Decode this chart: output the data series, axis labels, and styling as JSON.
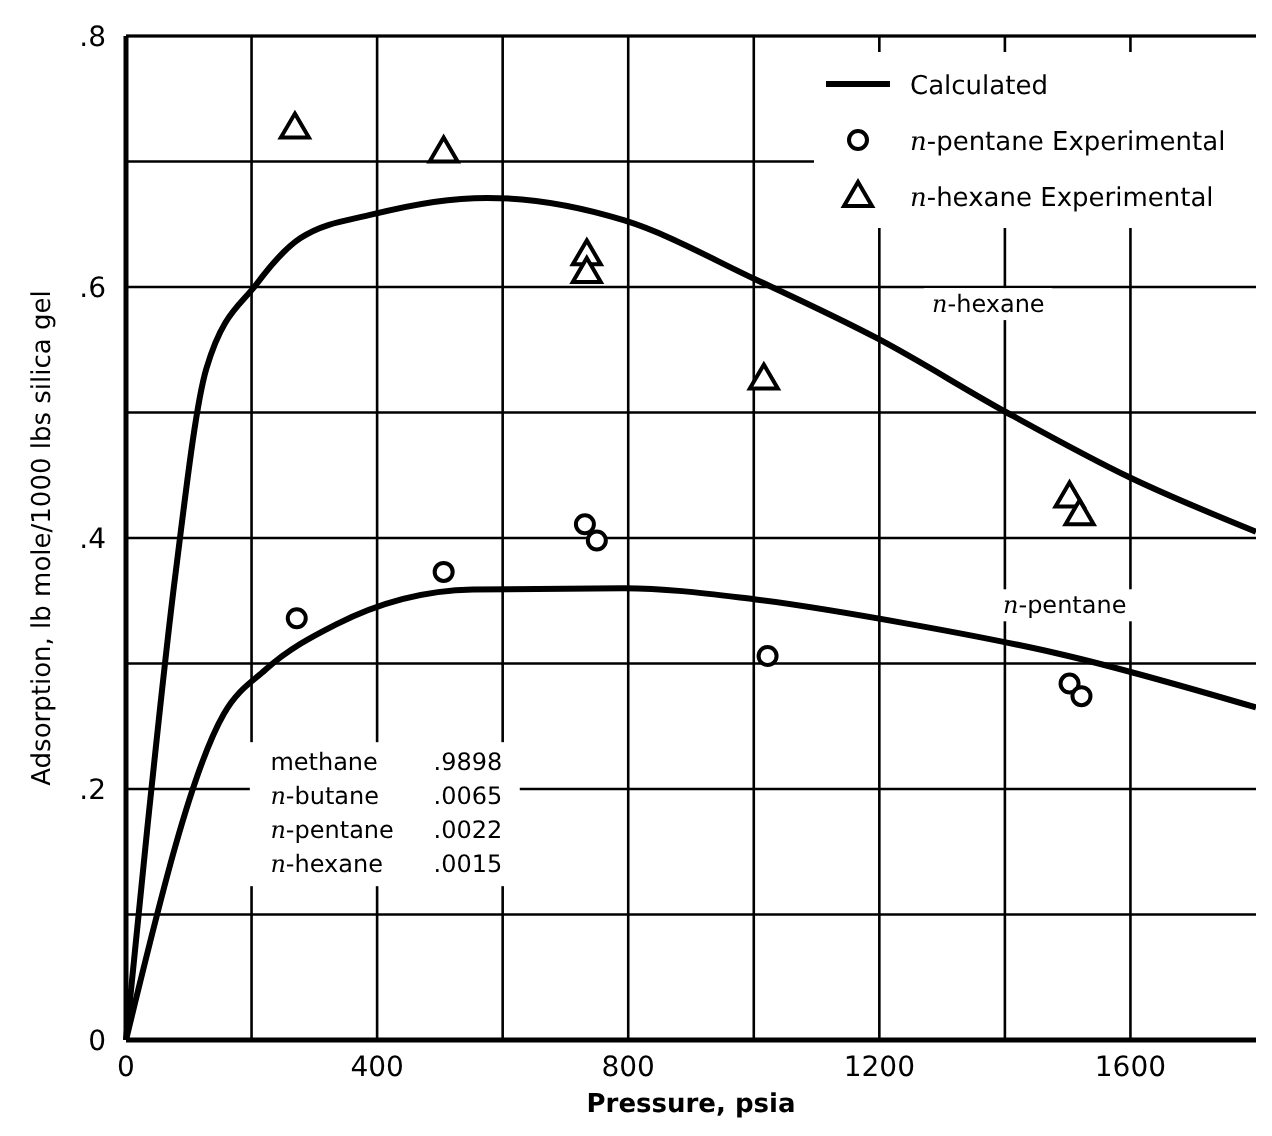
{
  "chart_data": {
    "type": "line",
    "xlabel": "Pressure, psia",
    "ylabel": "Adsorption, lb mole/1000 lbs silica gel",
    "xlim": [
      0,
      1800
    ],
    "ylim": [
      0,
      0.8
    ],
    "xticks": [
      0,
      {
        "value": 200,
        "label": null
      },
      400,
      {
        "value": 600,
        "label": null
      },
      800,
      {
        "value": 1000,
        "label": null
      },
      1200,
      {
        "value": 1400,
        "label": null
      },
      1600
    ],
    "yticks": [
      0,
      {
        "value": 0.1,
        "label": null
      },
      {
        "value": 0.2,
        "label": ".2"
      },
      {
        "value": 0.3,
        "label": null
      },
      {
        "value": 0.4,
        "label": ".4"
      },
      {
        "value": 0.5,
        "label": null
      },
      {
        "value": 0.6,
        "label": ".6"
      },
      {
        "value": 0.7,
        "label": null
      },
      {
        "value": 0.8,
        "label": ".8"
      }
    ],
    "grid": true,
    "legend": "top right",
    "series": [
      {
        "name": "Calculated",
        "color": "#000000",
        "line_style": "solid",
        "x": [
          0,
          34,
          78,
          128,
          209,
          278,
          394,
          575,
          794,
          1003,
          1197,
          1403,
          1600,
          1800
        ],
        "values": [
          0,
          0.169,
          0.368,
          0.535,
          0.603,
          0.639,
          0.658,
          0.671,
          0.653,
          0.606,
          0.559,
          0.5,
          0.448,
          0.405
        ]
      },
      {
        "color": "#000000",
        "line_style": "solid",
        "x": [
          0,
          156,
          222,
          334,
          553,
          794,
          1003,
          1253,
          1484,
          1800
        ],
        "values": [
          0,
          0.26,
          0.295,
          0.331,
          0.359,
          0.36,
          0.351,
          0.331,
          0.308,
          0.265
        ]
      },
      {
        "name": "n-pentane Experimental",
        "type": "scatter",
        "color": "#000000",
        "marker": "circle",
        "x": [
          272,
          506,
          731,
          750,
          1022,
          1503,
          1522
        ],
        "values": [
          0.336,
          0.373,
          0.411,
          0.398,
          0.306,
          0.284,
          0.274
        ]
      },
      {
        "name": "n-hexane Experimental",
        "type": "scatter",
        "color": "#000000",
        "marker": "triangle",
        "x": [
          269,
          506,
          734,
          734,
          1016,
          1503,
          1519
        ],
        "values": [
          0.727,
          0.708,
          0.626,
          0.612,
          0.527,
          0.433,
          0.419
        ]
      }
    ],
    "annotations": [
      "n-hexane",
      "n-pentane",
      "methane .9898",
      "n-butane .0065",
      "n-pentane .0022",
      "n-hexane .0015"
    ]
  }
}
